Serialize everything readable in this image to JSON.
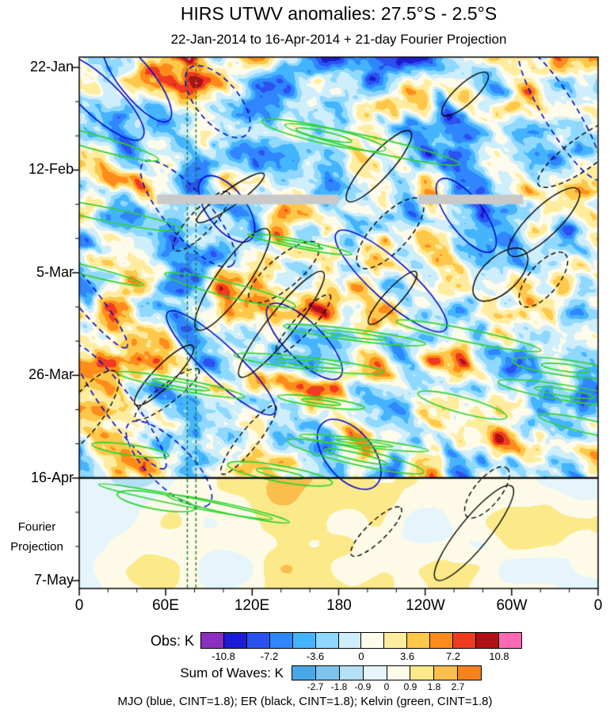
{
  "title": "HIRS UTWV anomalies: 27.5°S - 2.5°S",
  "subtitle": "22-Jan-2014 to 16-Apr-2014 + 21-day Fourier Projection",
  "chart_data": {
    "type": "heatmap",
    "description": "Hovmoller (time-longitude) diagram of HIRS upper-tropospheric water vapor anomalies averaged 27.5S-2.5S, with observed anomalies above the 16-Apr line and a 21-day Fourier wave projection below it; MJO, ER and Kelvin wave contours overlaid.",
    "units": "K",
    "x_axis": {
      "ticks": [
        "0",
        "60E",
        "120E",
        "180",
        "120W",
        "60W",
        "0"
      ],
      "range_deg": [
        0,
        360
      ],
      "major_tick_deg": 60,
      "minor_tick_deg": 20
    },
    "y_axis": {
      "ticks": [
        "22-Jan",
        "12-Feb",
        "5-Mar",
        "26-Mar",
        "16-Apr",
        "7-May"
      ],
      "interval_days": 21,
      "start": "22-Jan",
      "end": "7-May",
      "direction": "time-downward"
    },
    "projection_label": {
      "line1": "Fourier",
      "line2": "Projection"
    },
    "separator": {
      "date": "16-Apr",
      "style": "solid black horizontal line"
    },
    "reference_lines": {
      "style": "vertical dashed",
      "color_hex": "#1e7d1e",
      "longitudes_deg_east": [
        75,
        81
      ]
    },
    "missing_data_stripes": {
      "color_hex": "#c9c9c9",
      "date_approx": "18-Feb",
      "segments_lon_deg": [
        [
          54,
          180
        ],
        [
          235,
          308
        ]
      ]
    },
    "colorbars": [
      {
        "id": "obs",
        "label": "Obs: K",
        "tick_labels": [
          "-10.8",
          "-7.2",
          "-3.6",
          "0",
          "3.6",
          "7.2",
          "10.8"
        ],
        "boundaries": [
          -10.8,
          -9,
          -7.2,
          -5.4,
          -3.6,
          -1.8,
          0,
          1.8,
          3.6,
          5.4,
          7.2,
          9,
          10.8
        ],
        "colors": [
          "#8b2fc0",
          "#1c1cd2",
          "#2a52f0",
          "#2f86ff",
          "#45b4ff",
          "#8fd8ff",
          "#cfeefb",
          "#fffbea",
          "#ffec9e",
          "#ffc84a",
          "#ff8c1a",
          "#f03b20",
          "#b01015",
          "#ff69b4"
        ]
      },
      {
        "id": "waves",
        "label": "Sum of Waves: K",
        "tick_labels": [
          "-2.7",
          "-1.8",
          "-0.9",
          "0",
          "0.9",
          "1.8",
          "2.7"
        ],
        "boundaries": [
          -2.7,
          -1.8,
          -0.9,
          0,
          0.9,
          1.8,
          2.7
        ],
        "colors": [
          "#4aa8e8",
          "#7cc4ee",
          "#b4e0f6",
          "#e6f5fb",
          "#fdfbe8",
          "#fce98a",
          "#fbbd4b",
          "#f58220"
        ]
      }
    ],
    "overlay_contours": [
      {
        "name": "MJO",
        "color": "blue",
        "hex": "#0009cc",
        "cint": 1.8
      },
      {
        "name": "ER",
        "color": "black",
        "hex": "#000000",
        "cint": 1.8
      },
      {
        "name": "Kelvin",
        "color": "green",
        "hex": "#2ed32e",
        "cint": 1.8
      }
    ],
    "caption": "MJO (blue, CINT=1.8); ER (black, CINT=1.8); Kelvin (green, CINT=1.8)"
  }
}
